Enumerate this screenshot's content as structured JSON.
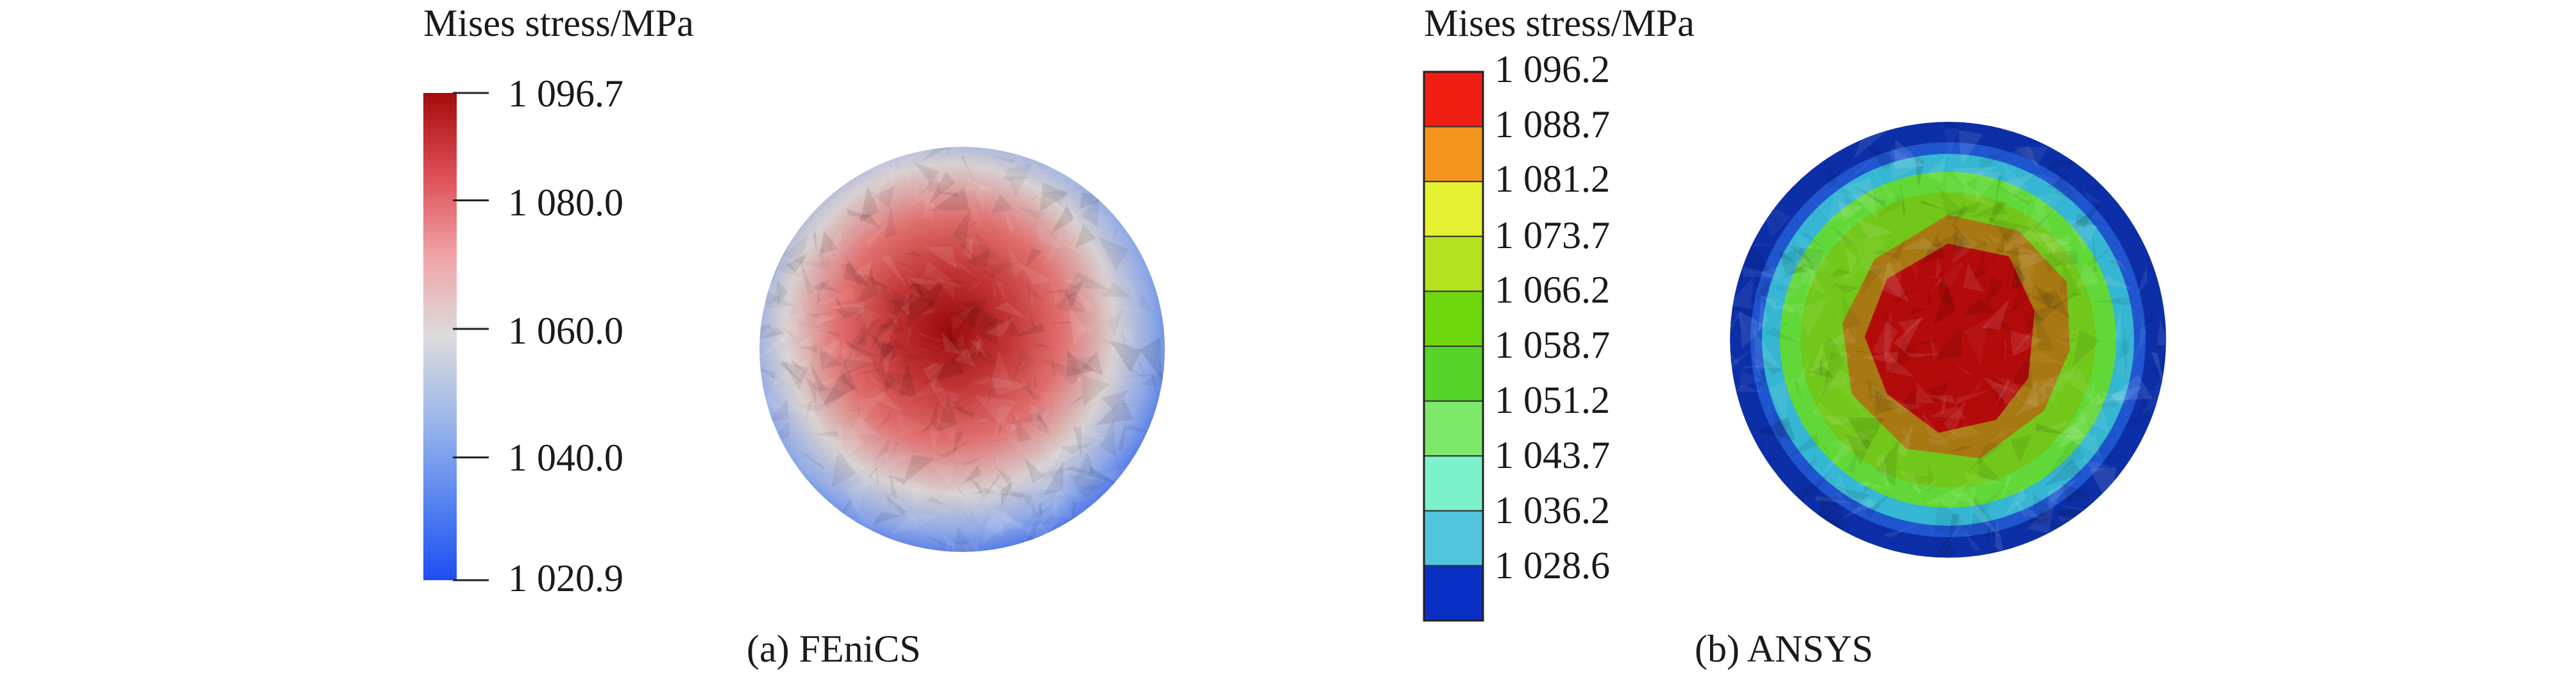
{
  "panels": [
    {
      "id": "a",
      "legend_title": "Mises stress/MPa",
      "caption": "(a) FEniCS",
      "legend_type": "continuous",
      "colormap": [
        "#1d4ef2",
        "#5a86f0",
        "#9db8ea",
        "#dcdcdc",
        "#f0a3a7",
        "#dd4d55",
        "#a50b0b"
      ],
      "tick_labels": [
        "1 096.7",
        "1 080.0",
        "1 060.0",
        "1 040.0",
        "1 020.9"
      ],
      "tick_values": [
        1096.7,
        1080.0,
        1060.0,
        1040.0,
        1020.9
      ],
      "range": [
        1020.9,
        1096.7
      ],
      "field_colors": {
        "center": "#9c0a0a",
        "mid": "#e07070",
        "outer_mid": "#d8d0d0",
        "edge": "#3f6be8"
      }
    },
    {
      "id": "b",
      "legend_title": "Mises stress/MPa",
      "caption": "(b) ANSYS",
      "legend_type": "discrete",
      "tick_labels": [
        "1 096.2",
        "1 088.7",
        "1 081.2",
        "1 073.7",
        "1 066.2",
        "1 058.7",
        "1 051.2",
        "1 043.7",
        "1 036.2",
        "1 028.6"
      ],
      "band_colors": [
        "#f01e12",
        "#f4961e",
        "#e4f232",
        "#b4e21e",
        "#6ed60c",
        "#56d42a",
        "#7ee86a",
        "#7cf2cc",
        "#52c4dc",
        "#0a2fc4"
      ],
      "field_colors": {
        "center": "#b30a0a",
        "ring1": "#a87812",
        "ring2": "#72c81a",
        "ring3": "#62d838",
        "ring4": "#35b6d2",
        "edge": "#0c2fa8"
      }
    }
  ]
}
